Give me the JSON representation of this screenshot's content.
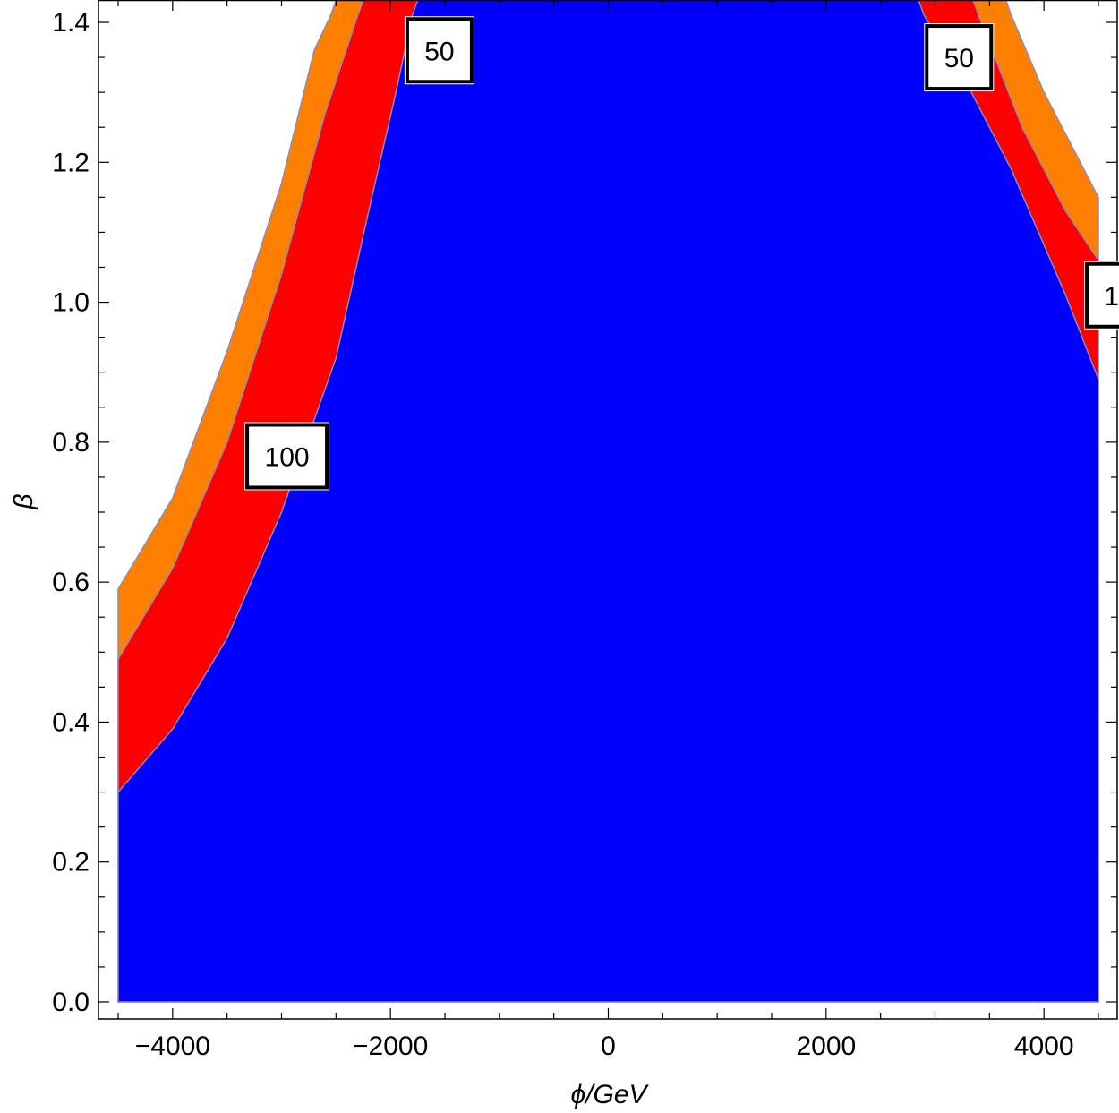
{
  "chart_data": {
    "type": "contour",
    "xlabel": "ϕ/GeV",
    "ylabel": "β",
    "xlim": [
      -4500,
      4500
    ],
    "ylim": [
      0,
      1.4
    ],
    "x_ticks": [
      {
        "value": -4000,
        "label": "−4000"
      },
      {
        "value": -2000,
        "label": "−2000"
      },
      {
        "value": 0,
        "label": "0"
      },
      {
        "value": 2000,
        "label": "2000"
      },
      {
        "value": 4000,
        "label": "4000"
      }
    ],
    "y_ticks": [
      {
        "value": 0.0,
        "label": "0.0"
      },
      {
        "value": 0.2,
        "label": "0.2"
      },
      {
        "value": 0.4,
        "label": "0.4"
      },
      {
        "value": 0.6,
        "label": "0.6"
      },
      {
        "value": 0.8,
        "label": "0.8"
      },
      {
        "value": 1.0,
        "label": "1.0"
      },
      {
        "value": 1.2,
        "label": "1.2"
      },
      {
        "value": 1.4,
        "label": "1.4"
      }
    ],
    "x_minor_step": 500,
    "y_minor_step": 0.05,
    "grid": false,
    "legend": "none",
    "regions": [
      {
        "name": "outer",
        "color": "#ff8000",
        "boundary_left": [
          [
            -4500,
            0.59
          ],
          [
            -4000,
            0.72
          ],
          [
            -3500,
            0.93
          ],
          [
            -3000,
            1.17
          ],
          [
            -2700,
            1.36
          ],
          [
            -2550,
            1.41
          ]
        ],
        "boundary_right": [
          [
            3700,
            1.41
          ],
          [
            4000,
            1.3
          ],
          [
            4500,
            1.15
          ]
        ]
      },
      {
        "name": "middle",
        "color": "#ff0000",
        "boundary_left": [
          [
            -4500,
            0.49
          ],
          [
            -4000,
            0.62
          ],
          [
            -3500,
            0.8
          ],
          [
            -3000,
            1.04
          ],
          [
            -2600,
            1.27
          ],
          [
            -2300,
            1.41
          ]
        ],
        "boundary_right": [
          [
            3400,
            1.41
          ],
          [
            3800,
            1.25
          ],
          [
            4200,
            1.13
          ],
          [
            4500,
            1.06
          ]
        ]
      },
      {
        "name": "inner",
        "color": "#0000ff",
        "boundary_left": [
          [
            -4500,
            0.3
          ],
          [
            -4000,
            0.39
          ],
          [
            -3500,
            0.52
          ],
          [
            -3000,
            0.7
          ],
          [
            -2500,
            0.92
          ],
          [
            -2200,
            1.13
          ],
          [
            -1950,
            1.3
          ],
          [
            -1800,
            1.41
          ]
        ],
        "boundary_right": [
          [
            2900,
            1.41
          ],
          [
            3300,
            1.31
          ],
          [
            3700,
            1.19
          ],
          [
            4200,
            1.01
          ],
          [
            4500,
            0.89
          ]
        ]
      }
    ],
    "contour_labels": [
      {
        "text": "100",
        "x": -2950,
        "y": 0.78
      },
      {
        "text": "50",
        "x": -1550,
        "y": 1.36
      },
      {
        "text": "50",
        "x": 3220,
        "y": 1.35
      },
      {
        "text": "1",
        "x": 4620,
        "y": 1.01
      }
    ]
  }
}
